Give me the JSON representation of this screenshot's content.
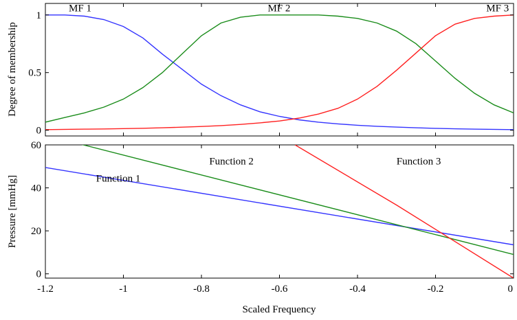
{
  "chart_data": [
    {
      "type": "line",
      "title": "",
      "xlabel": "",
      "ylabel": "Degree of membership",
      "xlim": [
        -1.2,
        0
      ],
      "ylim": [
        -0.05,
        1.1
      ],
      "xticks": [
        -1.2,
        -1,
        -0.8,
        -0.6,
        -0.4,
        -0.2,
        0
      ],
      "yticks": [
        0,
        0.5,
        1
      ],
      "ytick_labels": [
        "0",
        "0.5",
        "1"
      ],
      "grid": false,
      "legend": "none",
      "series": [
        {
          "name": "MF 1",
          "color": "#3333ff",
          "x": [
            -1.2,
            -1.15,
            -1.1,
            -1.05,
            -1.0,
            -0.95,
            -0.9,
            -0.85,
            -0.8,
            -0.75,
            -0.7,
            -0.65,
            -0.6,
            -0.55,
            -0.5,
            -0.45,
            -0.4,
            -0.35,
            -0.3,
            -0.25,
            -0.2,
            -0.15,
            -0.1,
            -0.05,
            0.0
          ],
          "y": [
            1.0,
            1.0,
            0.99,
            0.96,
            0.9,
            0.8,
            0.66,
            0.53,
            0.4,
            0.3,
            0.22,
            0.16,
            0.12,
            0.09,
            0.07,
            0.055,
            0.043,
            0.034,
            0.027,
            0.021,
            0.016,
            0.012,
            0.009,
            0.007,
            0.005
          ]
        },
        {
          "name": "MF 2",
          "color": "#1a8c1a",
          "x": [
            -1.2,
            -1.15,
            -1.1,
            -1.05,
            -1.0,
            -0.95,
            -0.9,
            -0.85,
            -0.8,
            -0.75,
            -0.7,
            -0.65,
            -0.6,
            -0.55,
            -0.5,
            -0.45,
            -0.4,
            -0.35,
            -0.3,
            -0.25,
            -0.2,
            -0.15,
            -0.1,
            -0.05,
            0.0
          ],
          "y": [
            0.07,
            0.11,
            0.15,
            0.2,
            0.27,
            0.37,
            0.5,
            0.66,
            0.82,
            0.93,
            0.98,
            1.0,
            1.0,
            1.0,
            1.0,
            0.99,
            0.97,
            0.93,
            0.86,
            0.75,
            0.6,
            0.45,
            0.32,
            0.22,
            0.15
          ]
        },
        {
          "name": "MF 3",
          "color": "#ff2020",
          "x": [
            -1.2,
            -1.15,
            -1.1,
            -1.05,
            -1.0,
            -0.95,
            -0.9,
            -0.85,
            -0.8,
            -0.75,
            -0.7,
            -0.65,
            -0.6,
            -0.55,
            -0.5,
            -0.45,
            -0.4,
            -0.35,
            -0.3,
            -0.25,
            -0.2,
            -0.15,
            -0.1,
            -0.05,
            0.0
          ],
          "y": [
            0.005,
            0.007,
            0.009,
            0.011,
            0.014,
            0.017,
            0.021,
            0.026,
            0.032,
            0.04,
            0.05,
            0.064,
            0.08,
            0.105,
            0.14,
            0.19,
            0.27,
            0.38,
            0.52,
            0.67,
            0.82,
            0.92,
            0.97,
            0.99,
            1.0
          ]
        }
      ],
      "annotations": [
        {
          "text": "MF 1",
          "x": -1.14,
          "y": 1.06
        },
        {
          "text": "MF 2",
          "x": -0.63,
          "y": 1.06
        },
        {
          "text": "MF 3",
          "x": -0.07,
          "y": 1.06
        }
      ]
    },
    {
      "type": "line",
      "title": "",
      "xlabel": "Scaled Frequency",
      "ylabel": "Pressure [mmHg]",
      "xlim": [
        -1.2,
        0
      ],
      "ylim": [
        -2,
        60
      ],
      "xticks": [
        -1.2,
        -1,
        -0.8,
        -0.6,
        -0.4,
        -0.2,
        0
      ],
      "xtick_labels": [
        "-1.2",
        "-1",
        "-0.8",
        "-0.6",
        "-0.4",
        "-0.2",
        "0"
      ],
      "yticks": [
        0,
        20,
        40,
        60
      ],
      "ytick_labels": [
        "0",
        "20",
        "40",
        "60"
      ],
      "grid": false,
      "legend": "none",
      "series": [
        {
          "name": "Function 1",
          "color": "#3333ff",
          "x": [
            -1.2,
            0
          ],
          "y": [
            49.5,
            13.5
          ]
        },
        {
          "name": "Function 2",
          "color": "#1a8c1a",
          "x": [
            -1.2,
            0
          ],
          "y": [
            64.5,
            9.0
          ]
        },
        {
          "name": "Function 3",
          "color": "#ff2020",
          "x": [
            -0.56,
            -0.3,
            0
          ],
          "y": [
            60.0,
            32.0,
            -2.0
          ]
        }
      ],
      "annotations": [
        {
          "text": "Function 1",
          "x": -1.07,
          "y": 44.5
        },
        {
          "text": "Function 2",
          "x": -0.78,
          "y": 52.5
        },
        {
          "text": "Function 3",
          "x": -0.3,
          "y": 52.5
        }
      ]
    }
  ]
}
